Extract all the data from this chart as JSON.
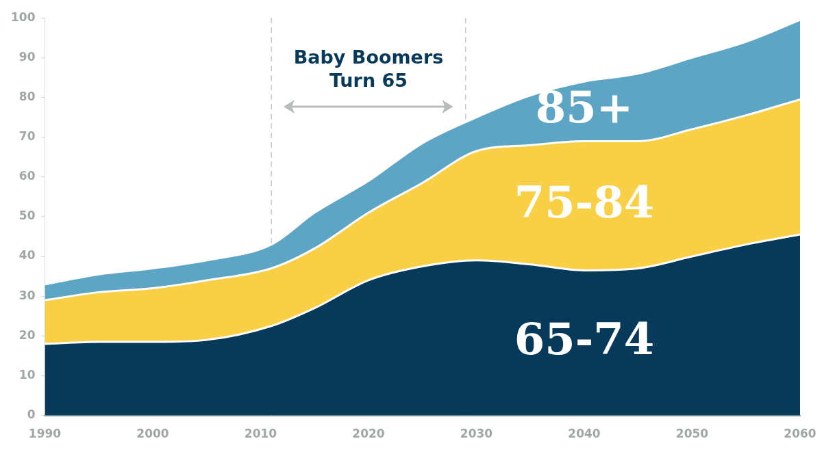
{
  "chart_data": {
    "type": "area",
    "stacked": true,
    "x": [
      1990,
      1995,
      2000,
      2005,
      2011,
      2015,
      2020,
      2025,
      2030,
      2035,
      2040,
      2045,
      2050,
      2055,
      2060
    ],
    "series": [
      {
        "name": "65-74",
        "color": "#073a5a",
        "values": [
          18,
          18.5,
          18.5,
          19,
          22.5,
          27,
          34,
          37.5,
          39,
          38,
          36.5,
          37,
          40,
          43,
          45.5
        ]
      },
      {
        "name": "75-84",
        "color": "#f9cf45",
        "values": [
          11,
          12.5,
          13.5,
          15,
          14.5,
          15,
          17,
          21,
          27.5,
          30,
          32.5,
          32,
          32,
          32.5,
          34
        ]
      },
      {
        "name": "85+",
        "color": "#5da5c5",
        "values": [
          4,
          4.5,
          5,
          5,
          6,
          9,
          8,
          10,
          8.5,
          12.5,
          15,
          17,
          18,
          18.5,
          20
        ]
      }
    ],
    "xlim": [
      1990,
      2060
    ],
    "xticks": [
      1990,
      2000,
      2010,
      2020,
      2030,
      2040,
      2050,
      2060
    ],
    "ylim": [
      0,
      100
    ],
    "yticks": [
      0,
      10,
      20,
      30,
      40,
      50,
      60,
      70,
      80,
      90,
      100
    ],
    "ref_lines": [
      {
        "axis": "x",
        "value": 2011,
        "color": "#c8c8c8",
        "line_style": "dashed"
      },
      {
        "axis": "x",
        "value": 2029,
        "color": "#c8c8c8",
        "line_style": "dashed"
      }
    ],
    "annotations": [
      "Baby Boomers\nTurn 65"
    ],
    "legend": false
  }
}
